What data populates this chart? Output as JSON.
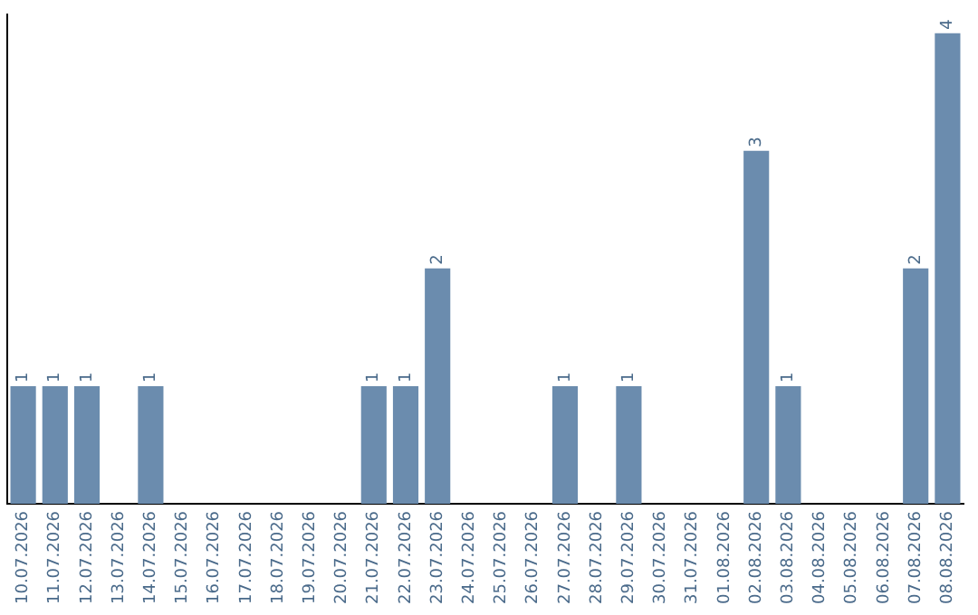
{
  "chart_data": {
    "type": "bar",
    "categories": [
      "10.07.2026",
      "11.07.2026",
      "12.07.2026",
      "13.07.2026",
      "14.07.2026",
      "15.07.2026",
      "16.07.2026",
      "17.07.2026",
      "18.07.2026",
      "19.07.2026",
      "20.07.2026",
      "21.07.2026",
      "22.07.2026",
      "23.07.2026",
      "24.07.2026",
      "25.07.2026",
      "26.07.2026",
      "27.07.2026",
      "28.07.2026",
      "29.07.2026",
      "30.07.2026",
      "31.07.2026",
      "01.08.2026",
      "02.08.2026",
      "03.08.2026",
      "04.08.2026",
      "05.08.2026",
      "06.08.2026",
      "07.08.2026",
      "08.08.2026"
    ],
    "values": [
      1,
      1,
      1,
      0,
      1,
      0,
      0,
      0,
      0,
      0,
      0,
      1,
      1,
      2,
      0,
      0,
      0,
      1,
      0,
      1,
      0,
      0,
      0,
      3,
      1,
      0,
      0,
      0,
      2,
      4
    ],
    "value_labels": [
      "1",
      "1",
      "1",
      null,
      "1",
      null,
      null,
      null,
      null,
      null,
      null,
      "1",
      "1",
      "2",
      null,
      null,
      null,
      "1",
      null,
      "1",
      null,
      null,
      null,
      "3",
      "1",
      null,
      null,
      null,
      "2",
      "4"
    ],
    "color": "#6b8cae",
    "ylim": [
      0,
      4.16
    ],
    "tick_labels": "x",
    "grid": false,
    "legend": false
  }
}
